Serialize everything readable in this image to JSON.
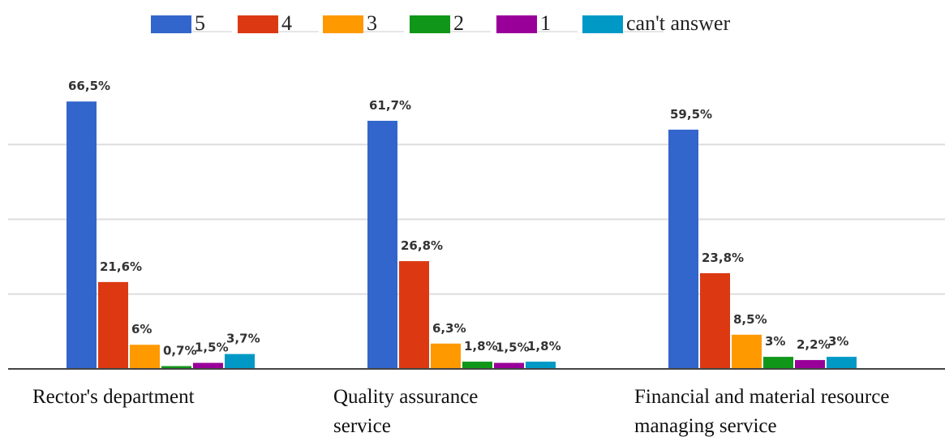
{
  "chart_data": {
    "type": "bar",
    "categories": [
      "Rector's department",
      "Quality assurance service",
      "Financial and material resource managing service"
    ],
    "series": [
      {
        "name": "5",
        "color": "#3366cc",
        "values": [
          66.5,
          61.7,
          59.5
        ],
        "value_labels": [
          "66,5%",
          "61,7%",
          "59,5%"
        ]
      },
      {
        "name": "4",
        "color": "#dc3912",
        "values": [
          21.6,
          26.8,
          23.8
        ],
        "value_labels": [
          "21,6%",
          "26,8%",
          "23,8%"
        ]
      },
      {
        "name": "3",
        "color": "#ff9900",
        "values": [
          6,
          6.3,
          8.5
        ],
        "value_labels": [
          "6%",
          "6,3%",
          "8,5%"
        ]
      },
      {
        "name": "2",
        "color": "#109618",
        "values": [
          0.7,
          1.8,
          3
        ],
        "value_labels": [
          "0,7%",
          "1,8%",
          "3%"
        ]
      },
      {
        "name": "1",
        "color": "#990099",
        "values": [
          1.5,
          1.5,
          2.2
        ],
        "value_labels": [
          "1,5%",
          "1,5%",
          "2,2%"
        ]
      },
      {
        "name": "can't answer",
        "color": "#0099c6",
        "values": [
          3.7,
          1.8,
          3
        ],
        "value_labels": [
          "3,7%",
          "1,8%",
          "3%"
        ]
      }
    ],
    "ylim": [
      0,
      74.4
    ],
    "grid": true,
    "legend": "top"
  }
}
